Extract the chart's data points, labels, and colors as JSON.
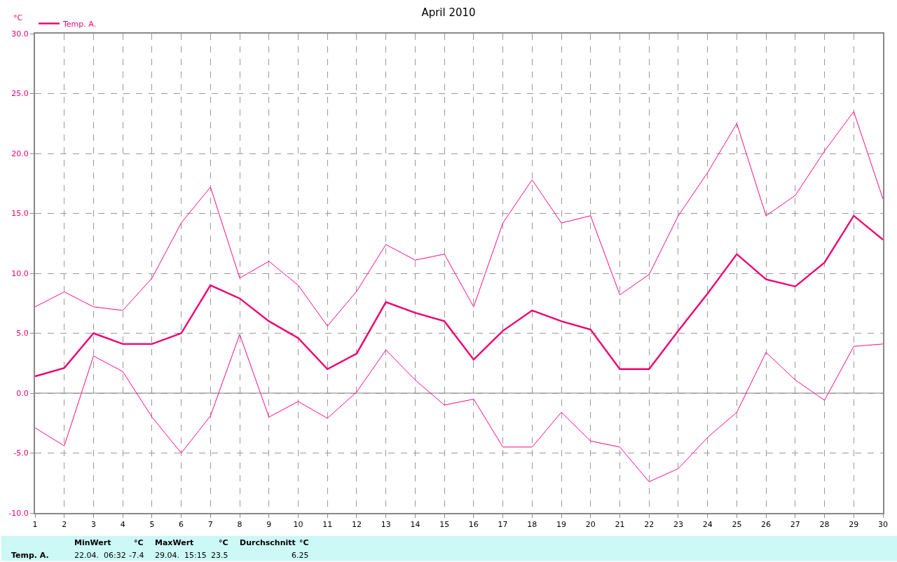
{
  "chart_data": {
    "type": "line",
    "title": "April 2010",
    "ylabel": "°C",
    "x": [
      1,
      2,
      3,
      4,
      5,
      6,
      7,
      8,
      9,
      10,
      11,
      12,
      13,
      14,
      15,
      16,
      17,
      18,
      19,
      20,
      21,
      22,
      23,
      24,
      25,
      26,
      27,
      28,
      29,
      30
    ],
    "series": [
      {
        "color": "#ff0a7e",
        "values": [
          7.2,
          8.45,
          7.2,
          6.9,
          9.6,
          14.2,
          17.2,
          9.6,
          11.0,
          9.0,
          5.6,
          8.5,
          12.4,
          11.1,
          11.6,
          7.2,
          14.2,
          17.8,
          14.2,
          14.8,
          8.2,
          9.9,
          14.8,
          18.4,
          22.5,
          14.8,
          16.5,
          20.2,
          23.5,
          16.2
        ]
      },
      {
        "name": "Temp. A.",
        "color": "#f0006e",
        "values": [
          1.4,
          2.1,
          5.0,
          4.1,
          4.1,
          5.0,
          9.0,
          7.9,
          6.0,
          4.6,
          2.0,
          3.3,
          7.6,
          6.7,
          6.0,
          2.8,
          5.2,
          6.9,
          6.0,
          5.3,
          2.0,
          2.0,
          5.2,
          8.3,
          11.6,
          9.5,
          8.9,
          10.9,
          14.8,
          12.8
        ]
      },
      {
        "color": "#ff0a7e",
        "values": [
          -2.9,
          -4.4,
          3.1,
          1.8,
          -2.0,
          -5.0,
          -1.9,
          4.9,
          -2.0,
          -0.7,
          -2.1,
          0.1,
          3.6,
          1.1,
          -1.0,
          -0.5,
          -4.5,
          -4.5,
          -1.6,
          -4.0,
          -4.5,
          -7.4,
          -6.3,
          -3.7,
          -1.6,
          3.4,
          1.1,
          -0.6,
          3.9,
          4.1
        ]
      }
    ],
    "xlim": [
      1,
      30
    ],
    "xticks": [
      1,
      2,
      3,
      4,
      5,
      6,
      7,
      8,
      9,
      10,
      11,
      12,
      13,
      14,
      15,
      16,
      17,
      18,
      19,
      20,
      21,
      22,
      23,
      24,
      25,
      26,
      27,
      28,
      29,
      30
    ],
    "ylim": [
      -10,
      30
    ],
    "yticks": [
      {
        "value": -10,
        "label": "-10.0"
      },
      {
        "value": -5,
        "label": "-5.0"
      },
      {
        "value": 0,
        "label": "0.0"
      },
      {
        "value": 5,
        "label": "5.0"
      },
      {
        "value": 10,
        "label": "10.0"
      },
      {
        "value": 15,
        "label": "15.0"
      },
      {
        "value": 20,
        "label": "20.0"
      },
      {
        "value": 25,
        "label": "25.0"
      },
      {
        "value": 30,
        "label": "30.0"
      }
    ],
    "ref_lines": [
      {
        "axis": "y",
        "value": 0,
        "color": "#aaaaaa"
      }
    ],
    "grid": true,
    "legend": "top left",
    "marker": "none",
    "line_style": "solid",
    "annotations": [
      "Temp. A.",
      "MinWert",
      "°C",
      "22.04.  06:32",
      "-7.4",
      "MaxWert",
      "°C",
      "29.04.  15:15",
      "23.5",
      "Durchschnitt",
      "°C",
      "6.25"
    ]
  }
}
